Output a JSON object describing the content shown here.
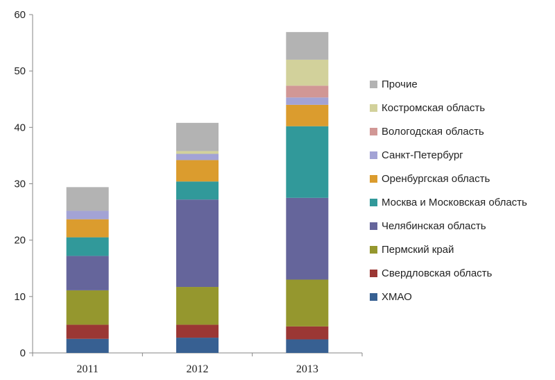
{
  "chart_data": {
    "type": "bar",
    "stacked": true,
    "categories": [
      "2011",
      "2012",
      "2013"
    ],
    "ylim": [
      0,
      60
    ],
    "yticks": [
      "0",
      "10",
      "20",
      "30",
      "40",
      "50",
      "60"
    ],
    "grid": false,
    "legend_position": "right",
    "series": [
      {
        "name": "ХМАО",
        "color": "#376092",
        "values": [
          2.5,
          2.7,
          2.4
        ]
      },
      {
        "name": "Свердловская область",
        "color": "#9B3734",
        "values": [
          2.5,
          2.3,
          2.3
        ]
      },
      {
        "name": "Пермский край",
        "color": "#95972E",
        "values": [
          6.1,
          6.7,
          8.3
        ]
      },
      {
        "name": "Челябинская область",
        "color": "#65659B",
        "values": [
          6.1,
          15.5,
          14.5
        ]
      },
      {
        "name": "Москва и Московская область",
        "color": "#31999A",
        "values": [
          3.3,
          3.2,
          12.7
        ]
      },
      {
        "name": "Оренбургская область",
        "color": "#DB9C2E",
        "values": [
          3.2,
          3.8,
          3.8
        ]
      },
      {
        "name": "Санкт-Петербург",
        "color": "#A3A3D5",
        "values": [
          1.5,
          1.1,
          1.3
        ]
      },
      {
        "name": "Вологодская область",
        "color": "#D19795",
        "values": [
          0,
          0,
          2.1
        ]
      },
      {
        "name": "Костромская область",
        "color": "#D2D19B",
        "values": [
          0,
          0.5,
          4.6
        ]
      },
      {
        "name": "Прочие",
        "color": "#B3B3B3",
        "values": [
          4.2,
          5.0,
          4.9
        ]
      }
    ]
  }
}
